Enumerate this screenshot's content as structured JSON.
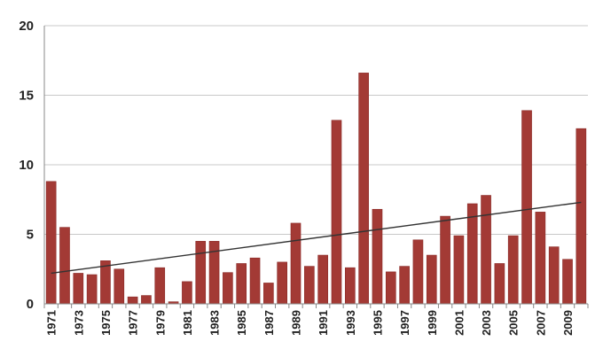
{
  "chart_data": {
    "type": "bar",
    "title": "",
    "xlabel": "",
    "ylabel": "",
    "ylim": [
      0,
      20
    ],
    "yticks": [
      "0",
      "5",
      "10",
      "15",
      "20"
    ],
    "grid": true,
    "legend": "none",
    "categories": [
      "1971",
      "1972",
      "1973",
      "1974",
      "1975",
      "1976",
      "1977",
      "1978",
      "1979",
      "1980",
      "1981",
      "1982",
      "1983",
      "1984",
      "1985",
      "1986",
      "1987",
      "1988",
      "1989",
      "1990",
      "1991",
      "1992",
      "1993",
      "1994",
      "1995",
      "1996",
      "1997",
      "1998",
      "1999",
      "2000",
      "2001",
      "2002",
      "2003",
      "2004",
      "2005",
      "2006",
      "2007",
      "2008",
      "2009",
      "2010"
    ],
    "xtick_labels": [
      "1971",
      "",
      "1973",
      "",
      "1975",
      "",
      "1977",
      "",
      "1979",
      "",
      "1981",
      "",
      "1983",
      "",
      "1985",
      "",
      "1987",
      "",
      "1989",
      "",
      "1991",
      "",
      "1993",
      "",
      "1995",
      "",
      "1997",
      "",
      "1999",
      "",
      "2001",
      "",
      "2003",
      "",
      "2005",
      "",
      "2007",
      "",
      "2009",
      ""
    ],
    "values": [
      8.8,
      5.5,
      2.2,
      2.1,
      3.1,
      2.5,
      0.5,
      0.6,
      2.6,
      0.15,
      1.6,
      4.5,
      4.5,
      2.25,
      2.9,
      3.3,
      1.5,
      3.0,
      5.8,
      2.7,
      3.5,
      13.2,
      2.6,
      16.6,
      6.8,
      2.3,
      2.7,
      4.6,
      3.5,
      6.3,
      4.9,
      7.2,
      7.8,
      2.9,
      4.9,
      13.9,
      6.6,
      4.1,
      3.2,
      12.6
    ],
    "trendline": {
      "type": "linear",
      "start": 2.2,
      "end": 7.3
    },
    "colors": {
      "bar": "#a33a35",
      "bar_edge": "#8a2a27",
      "trend": "#333333",
      "grid": "#c8c8c8",
      "axis": "#888888"
    }
  }
}
